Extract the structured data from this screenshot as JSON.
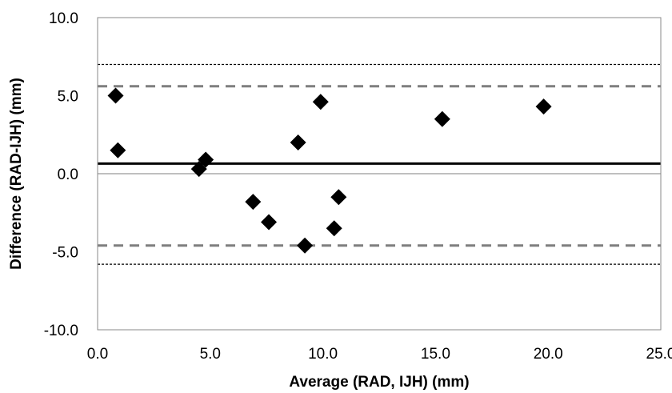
{
  "chart_data": {
    "type": "scatter",
    "title": "",
    "xlabel": "Average (RAD, IJH) (mm)",
    "ylabel": "Difference (RAD-IJH)  (mm)",
    "xlim": [
      0,
      25
    ],
    "ylim": [
      -10,
      10
    ],
    "x_ticks": [
      "0.0",
      "5.0",
      "10.0",
      "15.0",
      "20.0",
      "25.0"
    ],
    "y_ticks": [
      "10.0",
      "5.0",
      "0.0",
      "-5.0",
      "-10.0"
    ],
    "grid": false,
    "legend": "none",
    "points": [
      {
        "x": 0.8,
        "y": 5.0
      },
      {
        "x": 0.9,
        "y": 1.5
      },
      {
        "x": 4.5,
        "y": 0.3
      },
      {
        "x": 4.8,
        "y": 0.9
      },
      {
        "x": 6.9,
        "y": -1.8
      },
      {
        "x": 7.6,
        "y": -3.1
      },
      {
        "x": 8.9,
        "y": 2.0
      },
      {
        "x": 9.2,
        "y": -4.6
      },
      {
        "x": 9.9,
        "y": 4.6
      },
      {
        "x": 10.5,
        "y": -3.5
      },
      {
        "x": 10.7,
        "y": -1.5
      },
      {
        "x": 15.3,
        "y": 3.5
      },
      {
        "x": 19.8,
        "y": 4.3
      }
    ],
    "reference_lines": [
      {
        "role": "zero-line",
        "y": 0.0,
        "style": "solid",
        "color": "#999999"
      },
      {
        "role": "mean-difference",
        "y": 0.65,
        "style": "solid",
        "color": "#000000"
      },
      {
        "role": "upper-limit-dashed",
        "y": 5.6,
        "style": "dashed",
        "color": "#7f7f7f"
      },
      {
        "role": "lower-limit-dashed",
        "y": -4.6,
        "style": "dashed",
        "color": "#7f7f7f"
      },
      {
        "role": "upper-limit-dotted",
        "y": 7.0,
        "style": "dotted",
        "color": "#000000"
      },
      {
        "role": "lower-limit-dotted",
        "y": -5.8,
        "style": "dotted",
        "color": "#000000"
      }
    ],
    "marker": {
      "shape": "diamond",
      "color": "#000000"
    }
  }
}
